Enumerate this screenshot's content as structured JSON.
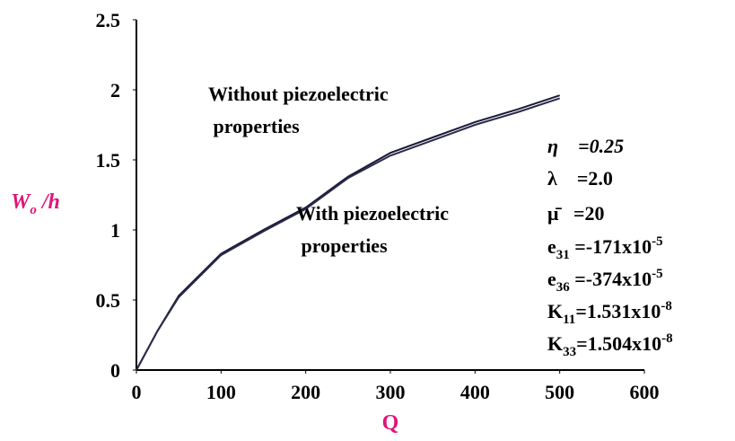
{
  "chart_data": {
    "type": "line",
    "x_label": "Q",
    "y_label": {
      "base": "W",
      "sub": "o",
      "text": " /h"
    },
    "x": [
      0,
      25,
      50,
      100,
      150,
      200,
      250,
      300,
      350,
      400,
      450,
      500
    ],
    "series": [
      {
        "color": "#1a1a3a",
        "values": [
          0,
          0.28,
          0.53,
          0.83,
          1.0,
          1.16,
          1.38,
          1.55,
          1.66,
          1.77,
          1.86,
          1.96
        ]
      },
      {
        "color": "#2a2a4a",
        "values": [
          0,
          0.28,
          0.52,
          0.82,
          0.99,
          1.15,
          1.37,
          1.53,
          1.64,
          1.75,
          1.84,
          1.94
        ]
      }
    ],
    "xlim": [
      0,
      600
    ],
    "xticks": [
      0,
      100,
      200,
      300,
      400,
      500,
      600
    ],
    "ylim": [
      0,
      2.5
    ],
    "yticks": [
      0,
      0.5,
      1,
      1.5,
      2,
      2.5
    ],
    "annotations": [
      [
        "Without piezoelectric",
        " properties"
      ],
      [
        "With piezoelectric",
        " properties"
      ]
    ],
    "parameters": [
      {
        "base": "η",
        "text": "    =0.25"
      },
      {
        "base": "λ",
        "text": "    =2.0"
      },
      {
        "base": "μ̄",
        "text": "   =20"
      },
      {
        "base": "e",
        "sub": "31",
        "text": " =-171x10",
        "sup": "-5"
      },
      {
        "base": "e",
        "sub": "36",
        "text": " =-374x10",
        "sup": "-5"
      },
      {
        "base": "K",
        "sub": "11",
        "text": "=1.531x10",
        "sup": "-8"
      },
      {
        "base": "K",
        "sub": "33",
        "text": "=1.504x10",
        "sup": "-8"
      }
    ]
  }
}
